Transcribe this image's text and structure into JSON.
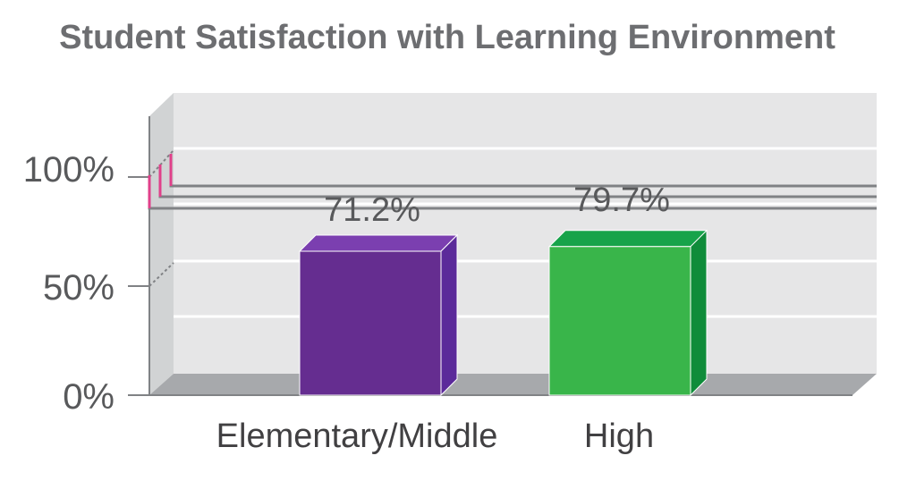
{
  "chart_data": {
    "type": "bar",
    "title": "Student Satisfaction with Learning Environment",
    "categories": [
      "Elementary/Middle",
      "High"
    ],
    "values": [
      71.2,
      79.7
    ],
    "data_labels": [
      "71.2%",
      "79.7%"
    ],
    "y_ticks": [
      {
        "value": 0,
        "label": "0%"
      },
      {
        "value": 50,
        "label": "50%"
      },
      {
        "value": 100,
        "label": "100%"
      }
    ],
    "ylim": [
      0,
      100
    ],
    "axis_break": true,
    "grid": true,
    "legend": "none",
    "colors": {
      "bars": [
        "#652d90",
        "#39b54a"
      ],
      "bar_tops": [
        "#7b3fb0",
        "#17a34a"
      ],
      "bar_sides": [
        "#5b2a9a",
        "#0f8c3a"
      ],
      "back_wall": "#e6e6e7",
      "side_wall": "#d1d3d4",
      "floor": "#a7a9ac",
      "axis": "#808285",
      "break_mark": "#e0408a"
    }
  }
}
